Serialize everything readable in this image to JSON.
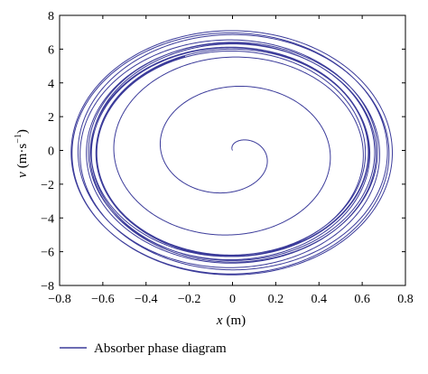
{
  "chart_data": {
    "type": "line",
    "xlabel_var": "x",
    "xlabel_unit": "(m)",
    "ylabel_var": "v",
    "ylabel_unit": "(m·s",
    "ylabel_exp": "−1",
    "ylabel_close": ")",
    "xlim": [
      -0.8,
      0.8
    ],
    "ylim": [
      -8,
      8
    ],
    "xticks": [
      -0.8,
      -0.6,
      -0.4,
      -0.2,
      0,
      0.2,
      0.4,
      0.6,
      0.8
    ],
    "xtick_labels": [
      "−0.8",
      "−0.6",
      "−0.4",
      "−0.2",
      "0",
      "0.2",
      "0.4",
      "0.6",
      "0.8"
    ],
    "yticks": [
      -8,
      -6,
      -4,
      -2,
      0,
      2,
      4,
      6,
      8
    ],
    "ytick_labels": [
      "−8",
      "−6",
      "−4",
      "−2",
      "0",
      "2",
      "4",
      "6",
      "8"
    ],
    "grid": false,
    "legend_position": "bottom-left",
    "series": [
      {
        "name": "Absorber phase diagram",
        "color": "#3b3b9a",
        "shape": "outward spiral from origin settling onto a limit cycle",
        "start": [
          0.0,
          0.0
        ],
        "limit_cycle_x_range": [
          -0.75,
          0.74
        ],
        "limit_cycle_v_range": [
          -7.4,
          7.1
        ]
      }
    ]
  }
}
